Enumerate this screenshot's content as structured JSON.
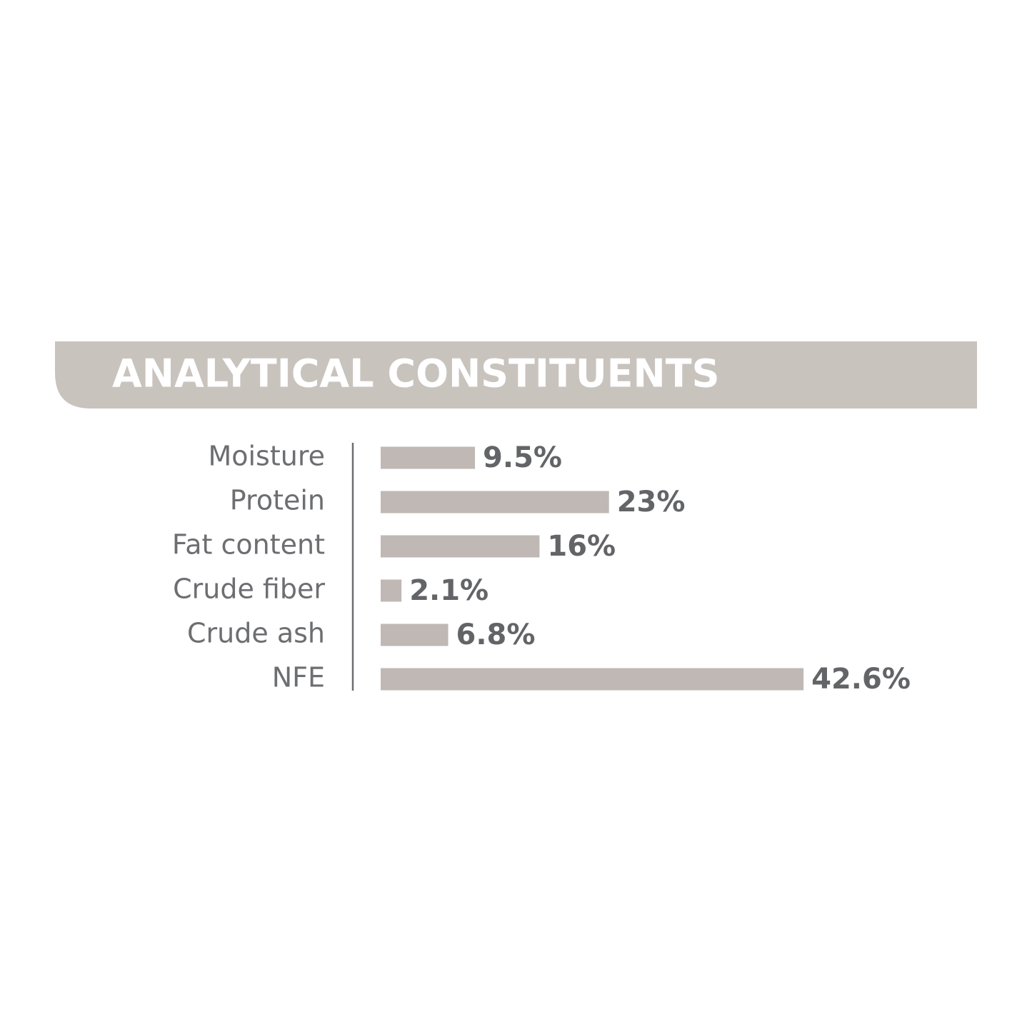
{
  "chart_data": {
    "type": "bar",
    "title": "ANALYTICAL CONSTITUENTS",
    "categories": [
      "Moisture",
      "Protein",
      "Fat content",
      "Crude fiber",
      "Crude ash",
      "NFE"
    ],
    "values": [
      9.5,
      23,
      16,
      2.1,
      6.8,
      42.6
    ],
    "value_labels": [
      "9.5%",
      "23%",
      "16%",
      "2.1%",
      "6.8%",
      "42.6%"
    ],
    "color": "#bfb8b4"
  }
}
